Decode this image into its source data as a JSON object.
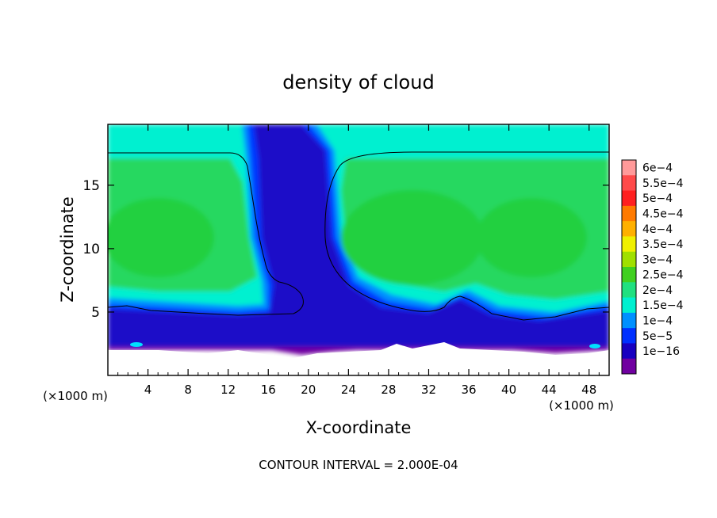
{
  "chart_data": {
    "type": "heatmap",
    "title": "density of cloud",
    "xlabel": "X-coordinate",
    "ylabel": "Z-coordinate",
    "x_unit": "(×1000 m)",
    "y_unit": "(×1000 m)",
    "x_ticks": [
      4,
      8,
      12,
      16,
      20,
      24,
      28,
      32,
      36,
      40,
      44,
      48
    ],
    "y_ticks": [
      5,
      10,
      15
    ],
    "xlim": [
      0,
      50
    ],
    "ylim": [
      0,
      19.8
    ],
    "footer": "CONTOUR INTERVAL = 2.000E-04",
    "contour_interval": 0.0002,
    "colorbar": {
      "labels": [
        "6e−4",
        "5.5e−4",
        "5e−4",
        "4.5e−4",
        "4e−4",
        "3.5e−4",
        "3e−4",
        "2.5e−4",
        "2e−4",
        "1.5e−4",
        "1e−4",
        "5e−5",
        "1e−16"
      ],
      "colors": [
        "#ff9a9a",
        "#ff4a4a",
        "#ff2020",
        "#ff7a00",
        "#ffb000",
        "#f0f000",
        "#a0e000",
        "#40d020",
        "#20e080",
        "#00f0d0",
        "#0090ff",
        "#0030ff",
        "#1800c0",
        "#7000a0"
      ]
    },
    "contour_line_level": 0.0002,
    "max_value_shown": 0.00026
  }
}
